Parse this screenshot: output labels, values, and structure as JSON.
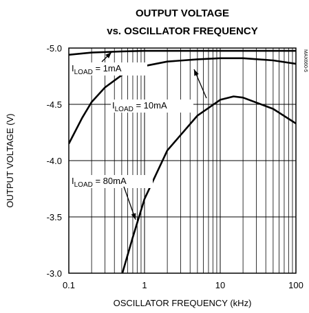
{
  "chart_data": {
    "type": "line",
    "title": [
      "OUTPUT VOLTAGE",
      "vs. OSCILLATOR FREQUENCY"
    ],
    "x_label": "OSCILLATOR FREQUENCY (kHz)",
    "y_label": "OUTPUT VOLTAGE (V)",
    "figure_id": "MAX660-5",
    "xscale": "log",
    "xlim": [
      0.1,
      100
    ],
    "xticks": [
      0.1,
      1,
      10,
      100
    ],
    "xticks_minor": [
      0.2,
      0.3,
      0.4,
      0.5,
      0.6,
      0.7,
      0.8,
      0.9,
      2,
      3,
      4,
      5,
      6,
      7,
      8,
      9,
      20,
      30,
      40,
      50,
      60,
      70,
      80,
      90
    ],
    "ylim": [
      -5.0,
      -3.0
    ],
    "yticks": [
      {
        "value": -5,
        "label": "-5.0"
      },
      -4.5,
      {
        "value": -4,
        "label": "-4.0"
      },
      -3.5,
      {
        "value": -3,
        "label": "-3.0"
      }
    ],
    "grid": true,
    "series": [
      {
        "name": {
          "main": "I",
          "sub": "LOAD",
          "rest": " = 1mA"
        },
        "color": "#000000",
        "x": [
          0.1,
          0.2,
          0.5,
          1,
          10,
          100
        ],
        "values": [
          -4.94,
          -4.96,
          -4.97,
          -4.975,
          -4.975,
          -4.975
        ]
      },
      {
        "name": {
          "main": "I",
          "sub": "LOAD",
          "rest": " = 10mA"
        },
        "color": "#000000",
        "x": [
          0.1,
          0.15,
          0.2,
          0.3,
          0.5,
          1,
          2,
          5,
          10,
          20,
          50,
          100
        ],
        "values": [
          -4.15,
          -4.38,
          -4.52,
          -4.65,
          -4.76,
          -4.84,
          -4.88,
          -4.9,
          -4.91,
          -4.91,
          -4.89,
          -4.86
        ]
      },
      {
        "name": {
          "main": "I",
          "sub": "LOAD",
          "rest": " = 80mA"
        },
        "color": "#000000",
        "x": [
          0.51,
          0.7,
          1,
          2,
          5,
          10,
          15,
          20,
          50,
          100
        ],
        "values": [
          -3.0,
          -3.32,
          -3.66,
          -4.09,
          -4.4,
          -4.54,
          -4.57,
          -4.56,
          -4.46,
          -4.33
        ]
      }
    ]
  }
}
